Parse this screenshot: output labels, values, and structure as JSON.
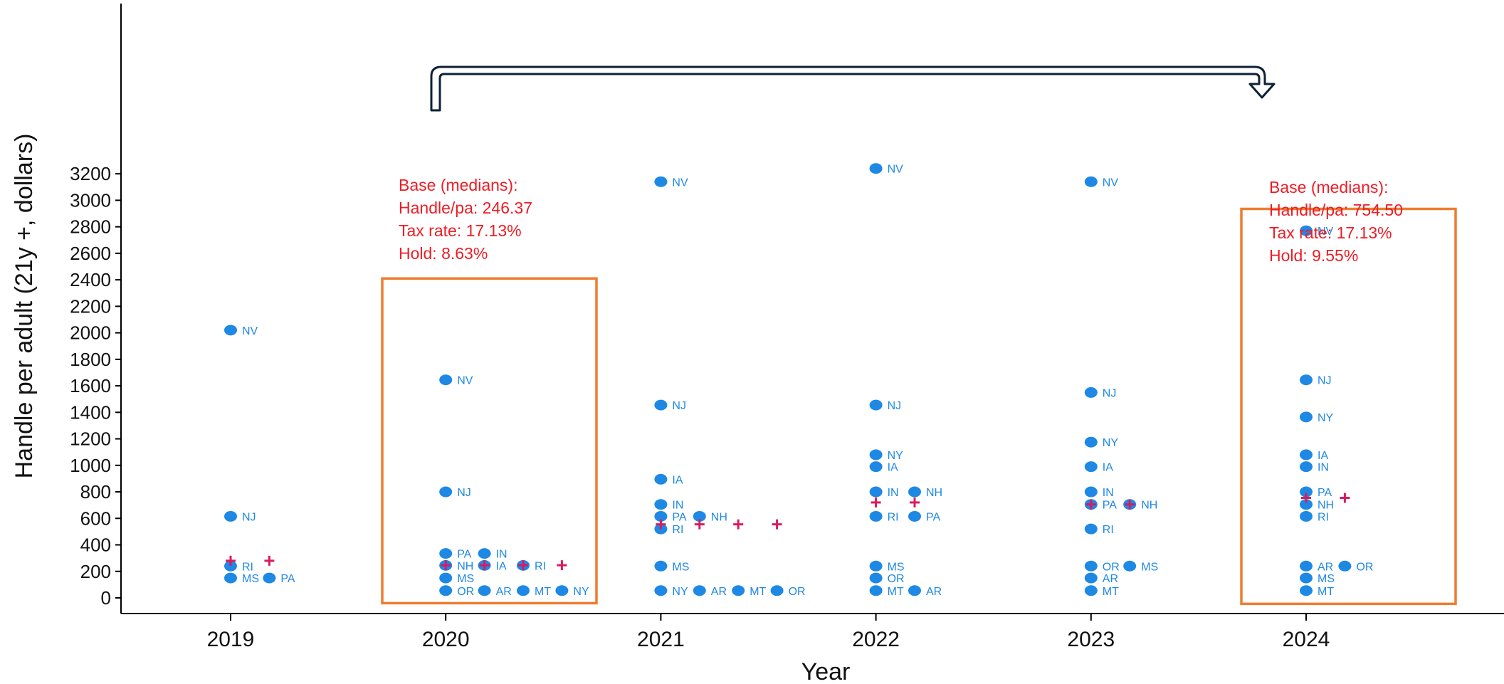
{
  "chart_data": {
    "type": "scatter",
    "xlabel": "Year",
    "ylabel": "Handle per adult (21y +, dollars)",
    "ylim": [
      -90,
      3340
    ],
    "yticks": [
      0,
      200,
      400,
      600,
      800,
      1000,
      1200,
      1400,
      1600,
      1800,
      2000,
      2200,
      2400,
      2600,
      2800,
      3000,
      3200
    ],
    "categories": [
      "2019",
      "2020",
      "2021",
      "2022",
      "2023",
      "2024"
    ],
    "grid": false,
    "colors": {
      "point": "#1e88e5",
      "median": "#d81b60",
      "box": "#ed7d31",
      "arrow": "#0d2137",
      "annotation": "#ee1c24"
    },
    "points": [
      {
        "year": "2019",
        "slot": 0,
        "y": 2020,
        "label": "NV"
      },
      {
        "year": "2019",
        "slot": 0,
        "y": 615,
        "label": "NJ"
      },
      {
        "year": "2019",
        "slot": 0,
        "y": 240,
        "label": "RI"
      },
      {
        "year": "2019",
        "slot": 0,
        "y": 150,
        "label": "MS"
      },
      {
        "year": "2019",
        "slot": 1,
        "y": 150,
        "label": "PA"
      },
      {
        "year": "2020",
        "slot": 0,
        "y": 1645,
        "label": "NV"
      },
      {
        "year": "2020",
        "slot": 0,
        "y": 800,
        "label": "NJ"
      },
      {
        "year": "2020",
        "slot": 0,
        "y": 335,
        "label": "PA"
      },
      {
        "year": "2020",
        "slot": 1,
        "y": 335,
        "label": "IN"
      },
      {
        "year": "2020",
        "slot": 0,
        "y": 245,
        "label": "NH"
      },
      {
        "year": "2020",
        "slot": 1,
        "y": 245,
        "label": "IA"
      },
      {
        "year": "2020",
        "slot": 2,
        "y": 245,
        "label": "RI"
      },
      {
        "year": "2020",
        "slot": 0,
        "y": 150,
        "label": "MS"
      },
      {
        "year": "2020",
        "slot": 0,
        "y": 55,
        "label": "OR"
      },
      {
        "year": "2020",
        "slot": 1,
        "y": 55,
        "label": "AR"
      },
      {
        "year": "2020",
        "slot": 2,
        "y": 55,
        "label": "MT"
      },
      {
        "year": "2020",
        "slot": 3,
        "y": 55,
        "label": "NY"
      },
      {
        "year": "2021",
        "slot": 0,
        "y": 3140,
        "label": "NV"
      },
      {
        "year": "2021",
        "slot": 0,
        "y": 1455,
        "label": "NJ"
      },
      {
        "year": "2021",
        "slot": 0,
        "y": 895,
        "label": "IA"
      },
      {
        "year": "2021",
        "slot": 0,
        "y": 705,
        "label": "IN"
      },
      {
        "year": "2021",
        "slot": 0,
        "y": 615,
        "label": "PA"
      },
      {
        "year": "2021",
        "slot": 1,
        "y": 615,
        "label": "NH"
      },
      {
        "year": "2021",
        "slot": 0,
        "y": 520,
        "label": "RI"
      },
      {
        "year": "2021",
        "slot": 0,
        "y": 240,
        "label": "MS"
      },
      {
        "year": "2021",
        "slot": 0,
        "y": 55,
        "label": "NY"
      },
      {
        "year": "2021",
        "slot": 1,
        "y": 55,
        "label": "AR"
      },
      {
        "year": "2021",
        "slot": 2,
        "y": 55,
        "label": "MT"
      },
      {
        "year": "2021",
        "slot": 3,
        "y": 55,
        "label": "OR"
      },
      {
        "year": "2022",
        "slot": 0,
        "y": 3240,
        "label": "NV"
      },
      {
        "year": "2022",
        "slot": 0,
        "y": 1455,
        "label": "NJ"
      },
      {
        "year": "2022",
        "slot": 0,
        "y": 1080,
        "label": "NY"
      },
      {
        "year": "2022",
        "slot": 0,
        "y": 990,
        "label": "IA"
      },
      {
        "year": "2022",
        "slot": 0,
        "y": 800,
        "label": "IN"
      },
      {
        "year": "2022",
        "slot": 1,
        "y": 800,
        "label": "NH"
      },
      {
        "year": "2022",
        "slot": 0,
        "y": 615,
        "label": "RI"
      },
      {
        "year": "2022",
        "slot": 1,
        "y": 615,
        "label": "PA"
      },
      {
        "year": "2022",
        "slot": 0,
        "y": 240,
        "label": "MS"
      },
      {
        "year": "2022",
        "slot": 0,
        "y": 150,
        "label": "OR"
      },
      {
        "year": "2022",
        "slot": 0,
        "y": 55,
        "label": "MT"
      },
      {
        "year": "2022",
        "slot": 1,
        "y": 55,
        "label": "AR"
      },
      {
        "year": "2023",
        "slot": 0,
        "y": 3140,
        "label": "NV"
      },
      {
        "year": "2023",
        "slot": 0,
        "y": 1550,
        "label": "NJ"
      },
      {
        "year": "2023",
        "slot": 0,
        "y": 1175,
        "label": "NY"
      },
      {
        "year": "2023",
        "slot": 0,
        "y": 990,
        "label": "IA"
      },
      {
        "year": "2023",
        "slot": 0,
        "y": 800,
        "label": "IN"
      },
      {
        "year": "2023",
        "slot": 0,
        "y": 705,
        "label": "PA"
      },
      {
        "year": "2023",
        "slot": 1,
        "y": 705,
        "label": "NH"
      },
      {
        "year": "2023",
        "slot": 0,
        "y": 520,
        "label": "RI"
      },
      {
        "year": "2023",
        "slot": 0,
        "y": 240,
        "label": "OR"
      },
      {
        "year": "2023",
        "slot": 1,
        "y": 240,
        "label": "MS"
      },
      {
        "year": "2023",
        "slot": 0,
        "y": 150,
        "label": "AR"
      },
      {
        "year": "2023",
        "slot": 0,
        "y": 55,
        "label": "MT"
      },
      {
        "year": "2024",
        "slot": 0,
        "y": 2770,
        "label": "NV"
      },
      {
        "year": "2024",
        "slot": 0,
        "y": 1645,
        "label": "NJ"
      },
      {
        "year": "2024",
        "slot": 0,
        "y": 1365,
        "label": "NY"
      },
      {
        "year": "2024",
        "slot": 0,
        "y": 1080,
        "label": "IA"
      },
      {
        "year": "2024",
        "slot": 0,
        "y": 990,
        "label": "IN"
      },
      {
        "year": "2024",
        "slot": 0,
        "y": 800,
        "label": "PA"
      },
      {
        "year": "2024",
        "slot": 0,
        "y": 705,
        "label": "NH"
      },
      {
        "year": "2024",
        "slot": 0,
        "y": 615,
        "label": "RI"
      },
      {
        "year": "2024",
        "slot": 0,
        "y": 240,
        "label": "AR"
      },
      {
        "year": "2024",
        "slot": 1,
        "y": 240,
        "label": "OR"
      },
      {
        "year": "2024",
        "slot": 0,
        "y": 150,
        "label": "MS"
      },
      {
        "year": "2024",
        "slot": 0,
        "y": 55,
        "label": "MT"
      }
    ],
    "median_markers": [
      {
        "year": "2019",
        "y": 280,
        "slots": [
          0,
          1
        ]
      },
      {
        "year": "2020",
        "y": 246.37,
        "slots": [
          0,
          1,
          2,
          3
        ]
      },
      {
        "year": "2021",
        "y": 555,
        "slots": [
          0,
          1,
          2,
          3
        ]
      },
      {
        "year": "2022",
        "y": 720,
        "slots": [
          0,
          1
        ]
      },
      {
        "year": "2023",
        "y": 705,
        "slots": [
          0,
          1
        ]
      },
      {
        "year": "2024",
        "y": 754.5,
        "slots": [
          0,
          1
        ]
      }
    ],
    "highlight_boxes": [
      {
        "year": "2020",
        "y_top": 2410,
        "y_bottom": -40
      },
      {
        "year": "2024",
        "y_top": 2935,
        "y_bottom": -45
      }
    ],
    "annotations": [
      {
        "year": "2020",
        "lines": [
          "Base (medians):",
          "Handle/pa: 246.37",
          "Tax rate: 17.13%",
          "Hold: 8.63%"
        ]
      },
      {
        "year": "2024",
        "lines": [
          "Base (medians):",
          "Handle/pa: 754.50",
          "Tax rate: 17.13%",
          "Hold: 9.55%"
        ]
      }
    ],
    "arrow": {
      "from_year": "2020",
      "to_year": "2024"
    }
  }
}
